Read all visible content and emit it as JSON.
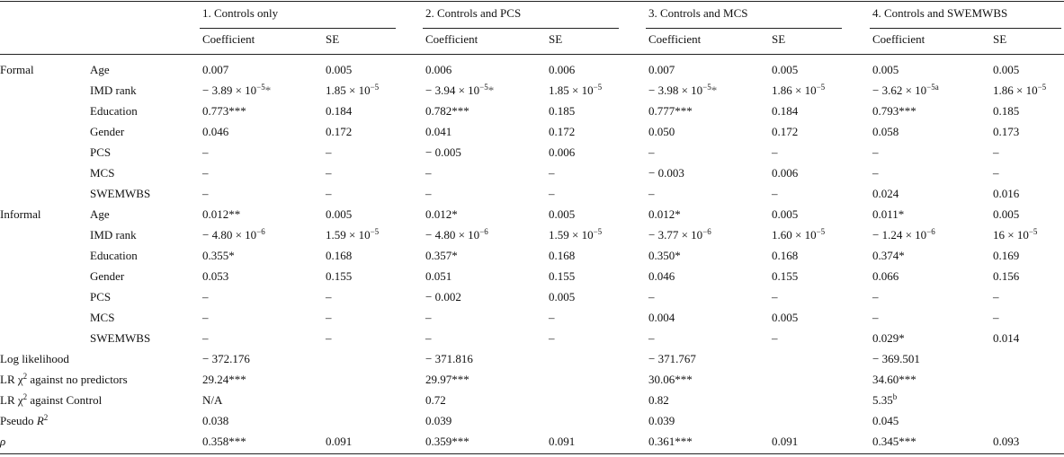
{
  "table": {
    "columns": [
      {
        "title": "1. Controls only",
        "sub": [
          "Coefficient",
          "SE"
        ]
      },
      {
        "title": "2. Controls and PCS",
        "sub": [
          "Coefficient",
          "SE"
        ]
      },
      {
        "title": "3. Controls and MCS",
        "sub": [
          "Coefficient",
          "SE"
        ]
      },
      {
        "title": "4. Controls and SWEMWBS",
        "sub": [
          "Coefficient",
          "SE"
        ]
      }
    ],
    "rows": [
      {
        "group": "Formal",
        "label": "Age",
        "cells": [
          "0.007",
          "0.005",
          "0.006",
          "0.006",
          "0.007",
          "0.005",
          "0.005",
          "0.005"
        ]
      },
      {
        "label": "IMD rank",
        "cells": [
          {
            "text": "− 3.89 × 10",
            "sup": "−5",
            "after": "*"
          },
          {
            "text": "1.85 × 10",
            "sup": "−5"
          },
          {
            "text": "− 3.94 × 10",
            "sup": "−5",
            "after": "*"
          },
          {
            "text": "1.85 × 10",
            "sup": "−5"
          },
          {
            "text": "− 3.98 × 10",
            "sup": "−5",
            "after": "*"
          },
          {
            "text": "1.86 × 10",
            "sup": "−5"
          },
          {
            "text": "− 3.62 × 10",
            "sup": "−5a"
          },
          {
            "text": "1.86 × 10",
            "sup": "−5"
          }
        ]
      },
      {
        "label": "Education",
        "cells": [
          "0.773***",
          "0.184",
          "0.782***",
          "0.185",
          "0.777***",
          "0.184",
          "0.793***",
          "0.185"
        ]
      },
      {
        "label": "Gender",
        "cells": [
          "0.046",
          "0.172",
          "0.041",
          "0.172",
          "0.050",
          "0.172",
          "0.058",
          "0.173"
        ]
      },
      {
        "label": "PCS",
        "cells": [
          "–",
          "–",
          "− 0.005",
          "0.006",
          "–",
          "–",
          "–",
          "–"
        ]
      },
      {
        "label": "MCS",
        "cells": [
          "–",
          "–",
          "–",
          "–",
          "− 0.003",
          "0.006",
          "–",
          "–"
        ]
      },
      {
        "label": "SWEMWBS",
        "cells": [
          "–",
          "–",
          "–",
          "–",
          "–",
          "–",
          "0.024",
          "0.016"
        ]
      },
      {
        "group": "Informal",
        "label": "Age",
        "cells": [
          "0.012**",
          "0.005",
          "0.012*",
          "0.005",
          "0.012*",
          "0.005",
          "0.011*",
          "0.005"
        ]
      },
      {
        "label": "IMD rank",
        "cells": [
          {
            "text": "− 4.80 × 10",
            "sup": "−6"
          },
          {
            "text": "1.59 × 10",
            "sup": "−5"
          },
          {
            "text": "− 4.80 × 10",
            "sup": "−6"
          },
          {
            "text": "1.59 × 10",
            "sup": "−5"
          },
          {
            "text": "− 3.77 × 10",
            "sup": "−6"
          },
          {
            "text": "1.60 × 10",
            "sup": "−5"
          },
          {
            "text": "− 1.24 × 10",
            "sup": "−6"
          },
          {
            "text": "16 × 10",
            "sup": "−5"
          }
        ]
      },
      {
        "label": "Education",
        "cells": [
          "0.355*",
          "0.168",
          "0.357*",
          "0.168",
          "0.350*",
          "0.168",
          "0.374*",
          "0.169"
        ]
      },
      {
        "label": "Gender",
        "cells": [
          "0.053",
          "0.155",
          "0.051",
          "0.155",
          "0.046",
          "0.155",
          "0.066",
          "0.156"
        ]
      },
      {
        "label": "PCS",
        "cells": [
          "–",
          "–",
          "− 0.002",
          "0.005",
          "–",
          "–",
          "–",
          "–"
        ]
      },
      {
        "label": "MCS",
        "cells": [
          "–",
          "–",
          "–",
          "–",
          "0.004",
          "0.005",
          "–",
          "–"
        ]
      },
      {
        "label": "SWEMWBS",
        "cells": [
          "–",
          "–",
          "–",
          "–",
          "–",
          "–",
          "0.029*",
          "0.014"
        ]
      },
      {
        "group": "Log likelihood",
        "cells": [
          "− 372.176",
          null,
          "− 371.816",
          null,
          "− 371.767",
          null,
          "− 369.501",
          null
        ]
      },
      {
        "group": {
          "text": "LR χ",
          "sup": "2",
          "after": " against no predictors"
        },
        "cells": [
          "29.24***",
          null,
          "29.97***",
          null,
          "30.06***",
          null,
          "34.60***",
          null
        ]
      },
      {
        "group": {
          "text": "LR χ",
          "sup": "2",
          "after": " against Control"
        },
        "cells": [
          "N/A",
          null,
          "0.72",
          null,
          "0.82",
          null,
          {
            "text": "5.35",
            "sup": "b"
          },
          null
        ]
      },
      {
        "group": {
          "text": "Pseudo ",
          "italic": "R",
          "sup": "2"
        },
        "cells": [
          "0.038",
          null,
          "0.039",
          null,
          "0.039",
          null,
          "0.045",
          null
        ]
      },
      {
        "group": {
          "italic": "ρ"
        },
        "cells": [
          "0.358***",
          "0.091",
          "0.359***",
          "0.091",
          "0.361***",
          "0.091",
          "0.345***",
          "0.093"
        ]
      }
    ]
  }
}
